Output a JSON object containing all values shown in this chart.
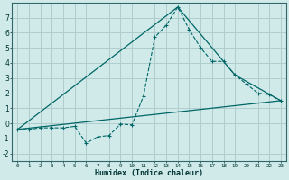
{
  "xlabel": "Humidex (Indice chaleur)",
  "background_color": "#d0eaea",
  "grid_color": "#b0cccc",
  "line_color": "#006666",
  "xlim": [
    -0.5,
    23.5
  ],
  "ylim": [
    -2.5,
    8.0
  ],
  "yticks": [
    -2,
    -1,
    0,
    1,
    2,
    3,
    4,
    5,
    6,
    7
  ],
  "xticks": [
    0,
    1,
    2,
    3,
    4,
    5,
    6,
    7,
    8,
    9,
    10,
    11,
    12,
    13,
    14,
    15,
    16,
    17,
    18,
    19,
    20,
    21,
    22,
    23
  ],
  "series1_x": [
    0,
    1,
    2,
    3,
    4,
    5,
    6,
    7,
    8,
    9,
    10,
    11,
    12,
    13,
    14,
    15,
    16,
    17,
    18,
    19,
    20,
    21,
    22,
    23
  ],
  "series1_y": [
    -0.4,
    -0.4,
    -0.3,
    -0.3,
    -0.3,
    -0.2,
    -1.3,
    -0.9,
    -0.8,
    -0.05,
    -0.1,
    1.8,
    5.7,
    6.5,
    7.7,
    6.2,
    5.0,
    4.1,
    4.1,
    3.2,
    2.6,
    2.0,
    1.9,
    1.5
  ],
  "series2_x": [
    0,
    14,
    19,
    23
  ],
  "series2_y": [
    -0.4,
    7.7,
    3.2,
    1.5
  ],
  "series3_x": [
    0,
    23
  ],
  "series3_y": [
    -0.4,
    1.5
  ]
}
